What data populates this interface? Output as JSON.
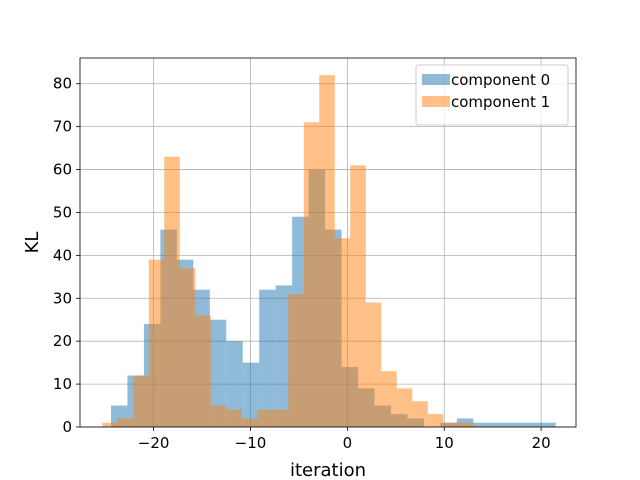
{
  "chart_data": {
    "type": "histogram",
    "title": "",
    "xlabel": "iteration",
    "ylabel": "KL",
    "xlim": [
      -27.6,
      23.6
    ],
    "ylim": [
      0,
      86
    ],
    "xticks": [
      -20,
      -10,
      0,
      10,
      20
    ],
    "yticks": [
      0,
      10,
      20,
      30,
      40,
      50,
      60,
      70,
      80
    ],
    "grid": true,
    "legend_position": "top-right",
    "series": [
      {
        "name": "component 0",
        "color": "#1f77b4",
        "alpha": 0.5,
        "bin_edges": [
          -24.4,
          -22.7,
          -21.0,
          -19.3,
          -17.6,
          -15.9,
          -14.2,
          -12.5,
          -10.8,
          -9.1,
          -7.4,
          -5.7,
          -4.0,
          -2.3,
          -0.6,
          1.1,
          2.8,
          4.5,
          6.2,
          7.9,
          9.6,
          11.3,
          13.0,
          14.7,
          16.4,
          18.1,
          19.8,
          21.5
        ],
        "counts": [
          5,
          12,
          24,
          46,
          39,
          32,
          25,
          20,
          15,
          32,
          33,
          49,
          60,
          46,
          14,
          9,
          5,
          3,
          2,
          0,
          1,
          2,
          1,
          1,
          1,
          1,
          1
        ]
      },
      {
        "name": "component 1",
        "color": "#ff7f0e",
        "alpha": 0.5,
        "bin_edges": [
          -25.3,
          -23.7,
          -22.1,
          -20.5,
          -18.9,
          -17.3,
          -15.7,
          -14.1,
          -12.5,
          -10.9,
          -9.3,
          -7.7,
          -6.1,
          -4.5,
          -2.9,
          -1.3,
          0.3,
          1.9,
          3.5,
          5.1,
          6.7,
          8.3,
          9.9,
          11.5,
          13.1,
          14.7
        ],
        "counts": [
          1,
          2,
          12,
          39,
          63,
          37,
          26,
          5,
          4,
          2,
          4,
          4,
          31,
          71,
          82,
          44,
          61,
          29,
          13,
          9,
          6,
          3,
          1,
          1,
          0
        ]
      }
    ]
  }
}
